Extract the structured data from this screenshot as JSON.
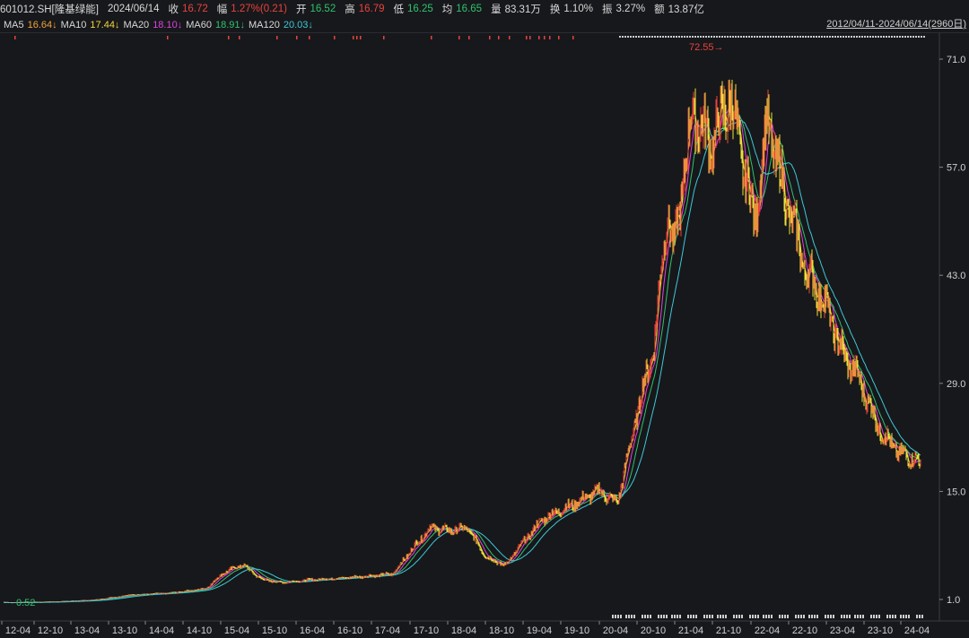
{
  "header": {
    "symbol": "601012.SH[隆基绿能]",
    "date": "2024/06/14",
    "close_label": "收",
    "close": "16.72",
    "change_label": "幅",
    "change": "1.27%(0.21)",
    "open_label": "开",
    "open": "16.52",
    "high_label": "高",
    "high": "16.79",
    "low_label": "低",
    "low": "16.25",
    "avg_label": "均",
    "avg": "16.65",
    "volume_label": "量",
    "volume": "83.31万",
    "turnover_label": "换",
    "turnover": "1.10%",
    "amplitude_label": "振",
    "amplitude": "3.27%",
    "amount_label": "额",
    "amount": "13.87亿"
  },
  "ma_bar": {
    "ma5": "MA5",
    "ma5_val": "16.64↓",
    "ma10": "MA10",
    "ma10_val": "17.44↓",
    "ma20": "MA20",
    "ma20_val": "18.10↓",
    "ma60": "MA60",
    "ma60_val": "18.91↓",
    "ma120": "MA120",
    "ma120_val": "20.03↓",
    "range": "2012/04/11-2024/06/14(2960日)"
  },
  "colors": {
    "up": "#e8433e",
    "down": "#2ec26e",
    "ma5": "#ffffff",
    "ma10": "#f2d43a",
    "ma20": "#e040e0",
    "ma60": "#2ec26e",
    "ma120": "#3ec8d8",
    "bg": "#17181b",
    "grid": "#3a3d44"
  },
  "chart_data": {
    "type": "line",
    "title": "",
    "x_ticks": [
      "12-04",
      "12-10",
      "13-04",
      "13-10",
      "14-04",
      "14-10",
      "15-04",
      "15-10",
      "16-04",
      "16-10",
      "17-04",
      "17-10",
      "18-04",
      "18-10",
      "19-04",
      "19-10",
      "20-04",
      "20-10",
      "21-04",
      "21-10",
      "22-04",
      "22-10",
      "23-04",
      "23-10",
      "24-04"
    ],
    "y_ticks": [
      "1.0",
      "15.0",
      "29.0",
      "43.0",
      "57.0",
      "71.0"
    ],
    "ylim": [
      0,
      72.5
    ],
    "max_label": "72.55",
    "min_label": "0.52",
    "series": [
      {
        "name": "price",
        "x": [
          "12-04",
          "12-10",
          "13-04",
          "13-10",
          "14-04",
          "14-10",
          "15-01",
          "15-04",
          "15-07",
          "15-10",
          "16-04",
          "16-10",
          "17-04",
          "17-07",
          "17-10",
          "18-01",
          "18-04",
          "18-07",
          "18-10",
          "19-01",
          "19-04",
          "19-07",
          "19-10",
          "20-01",
          "20-04",
          "20-07",
          "20-10",
          "20-12",
          "21-01",
          "21-04",
          "21-07",
          "21-10",
          "21-12",
          "22-02",
          "22-04",
          "22-07",
          "22-10",
          "23-01",
          "23-04",
          "23-07",
          "23-10",
          "24-01",
          "24-04",
          "24-06"
        ],
        "values": [
          0.6,
          0.7,
          0.9,
          1.6,
          1.8,
          2.4,
          4.5,
          5.5,
          3.6,
          3.2,
          3.6,
          3.9,
          4.3,
          7.4,
          10.3,
          9.9,
          10.2,
          6.5,
          5.4,
          8.5,
          11.4,
          12.6,
          13.7,
          15.1,
          13.5,
          24.5,
          34.5,
          52.0,
          46.0,
          64.0,
          60.0,
          66.0,
          58.0,
          50.0,
          63.0,
          53.0,
          44.0,
          40.0,
          33.0,
          29.0,
          23.0,
          20.0,
          19.0,
          16.72
        ]
      }
    ]
  }
}
